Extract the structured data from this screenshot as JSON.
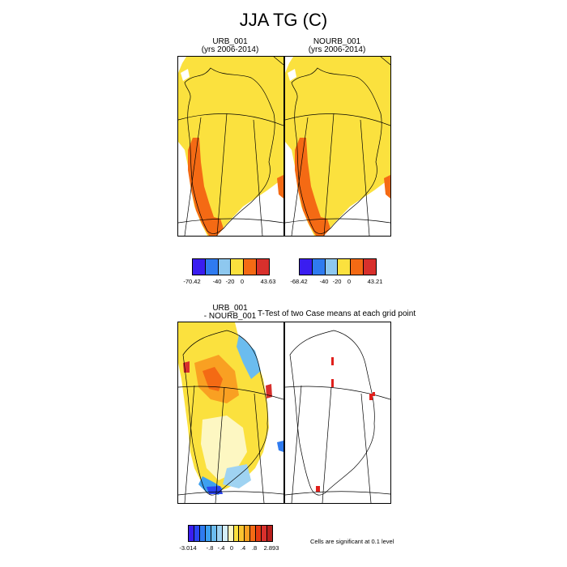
{
  "figure": {
    "title": "JJA TG (C)"
  },
  "panels": {
    "p1": {
      "title_line1": "URB_001",
      "title_line2": "(yrs 2006-2014)"
    },
    "p2": {
      "title_line1": "NOURB_001",
      "title_line2": "(yrs 2006-2014)"
    },
    "p3": {
      "title_line1": "URB_001",
      "title_line2": "- NOURB_001"
    },
    "p4": {
      "title": "T-Test of two Case means at each grid point"
    }
  },
  "colorbars": {
    "cb1": {
      "colors": [
        "#3a1df0",
        "#2f7bf0",
        "#8ec8ef",
        "#fbe13e",
        "#f46a14",
        "#d8302c"
      ],
      "labels": [
        "-70.42",
        "-40",
        "-20",
        "0",
        "43.63"
      ]
    },
    "cb2": {
      "colors": [
        "#3a1df0",
        "#2f7bf0",
        "#8ec8ef",
        "#fbe13e",
        "#f46a14",
        "#d8302c"
      ],
      "labels": [
        "-68.42",
        "-40",
        "-20",
        "0",
        "43.21"
      ]
    },
    "cb3": {
      "colors": [
        "#3a1df0",
        "#2a45f2",
        "#2f7bf0",
        "#3da0f0",
        "#6bbcef",
        "#9fd3f2",
        "#d4eef8",
        "#fdf7c2",
        "#fbe13e",
        "#fbc430",
        "#f9a022",
        "#f46a14",
        "#e33a12",
        "#d8302c",
        "#b81f1c"
      ],
      "labels": [
        "-3.014",
        "-.8",
        "-.4",
        "0",
        ".4",
        ".8",
        "2.893"
      ]
    }
  },
  "note": {
    "text": "Cells are significant at 0.1 level"
  }
}
